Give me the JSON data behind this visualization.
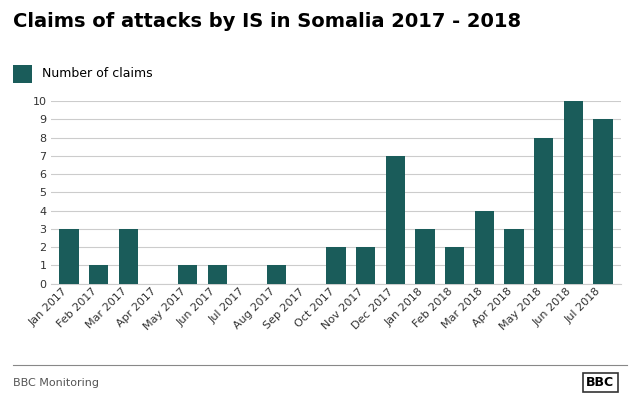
{
  "title": "Claims of attacks by IS in Somalia 2017 - 2018",
  "legend_label": "Number of claims",
  "bar_color": "#1a5c5a",
  "categories": [
    "Jan 2017",
    "Feb 2017",
    "Mar 2017",
    "Apr 2017",
    "May 2017",
    "Jun 2017",
    "Jul 2017",
    "Aug 2017",
    "Sep 2017",
    "Oct 2017",
    "Nov 2017",
    "Dec 2017",
    "Jan 2018",
    "Feb 2018",
    "Mar 2018",
    "Apr 2018",
    "May 2018",
    "Jun 2018",
    "Jul 2018"
  ],
  "values": [
    3,
    1,
    3,
    0,
    1,
    1,
    0,
    1,
    0,
    2,
    2,
    7,
    3,
    2,
    4,
    3,
    8,
    10,
    9
  ],
  "ylim": [
    0,
    10
  ],
  "yticks": [
    0,
    1,
    2,
    3,
    4,
    5,
    6,
    7,
    8,
    9,
    10
  ],
  "background_color": "#ffffff",
  "footer_left": "BBC Monitoring",
  "footer_right": "BBC",
  "grid_color": "#cccccc",
  "title_fontsize": 14,
  "axis_fontsize": 8,
  "legend_fontsize": 9,
  "footer_fontsize": 8
}
